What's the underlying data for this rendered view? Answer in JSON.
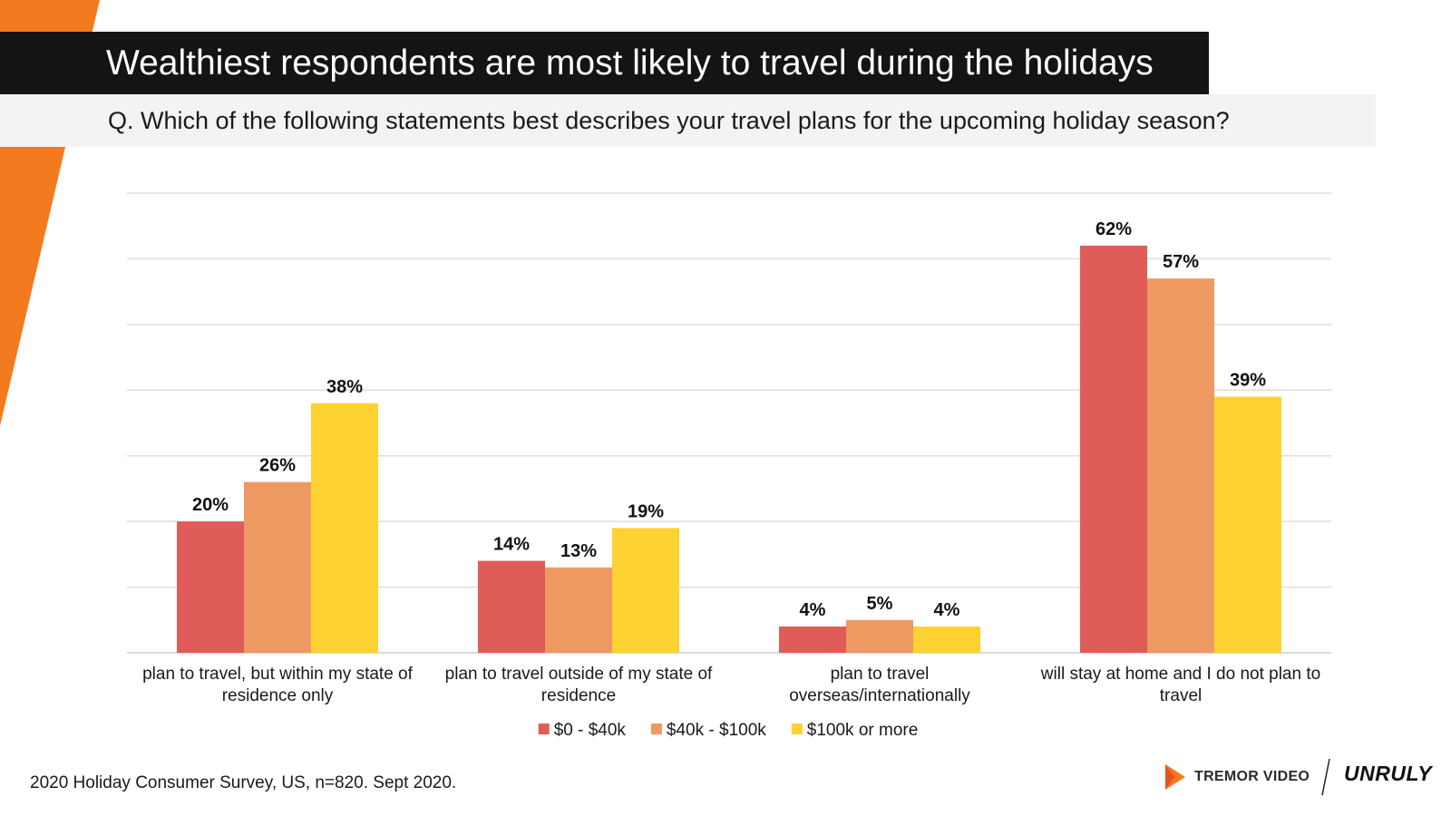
{
  "slide": {
    "title": "Wealthiest respondents are most likely to travel during the holidays",
    "subtitle": "Q. Which of the following statements best describes your travel plans for the upcoming holiday season?",
    "source": "2020 Holiday Consumer Survey, US, n=820. Sept 2020.",
    "logos": {
      "tremor_wordmark": "TREMOR VIDEO",
      "unruly_wordmark": "UNRULY",
      "tremor_icon": "play-triangle-icon"
    },
    "colors": {
      "accent_orange": "#f47a20",
      "title_bg": "#141414",
      "subtitle_bg": "#f3f3f3"
    }
  },
  "chart_data": {
    "type": "bar",
    "categories": [
      [
        "plan to travel, but within my state of",
        "residence only"
      ],
      [
        "plan to travel outside of my state of",
        "residence"
      ],
      [
        "plan to travel",
        "overseas/internationally"
      ],
      [
        "will stay at home and I do not plan to",
        "travel"
      ]
    ],
    "series": [
      {
        "name": "$0 - $40k",
        "color": "#e05c58",
        "values": [
          20,
          14,
          4,
          62
        ],
        "labels": [
          "20%",
          "14%",
          "4%",
          "62%"
        ]
      },
      {
        "name": "$40k - $100k",
        "color": "#ee9862",
        "values": [
          26,
          13,
          5,
          57
        ],
        "labels": [
          "26%",
          "13%",
          "5%",
          "57%"
        ]
      },
      {
        "name": "$100k or more",
        "color": "#fdd232",
        "values": [
          38,
          19,
          4,
          39
        ],
        "labels": [
          "38%",
          "19%",
          "4%",
          "39%"
        ]
      }
    ],
    "ylim": [
      0,
      70
    ],
    "grid": true,
    "legend": "bottom",
    "xlabel": "",
    "ylabel": ""
  }
}
